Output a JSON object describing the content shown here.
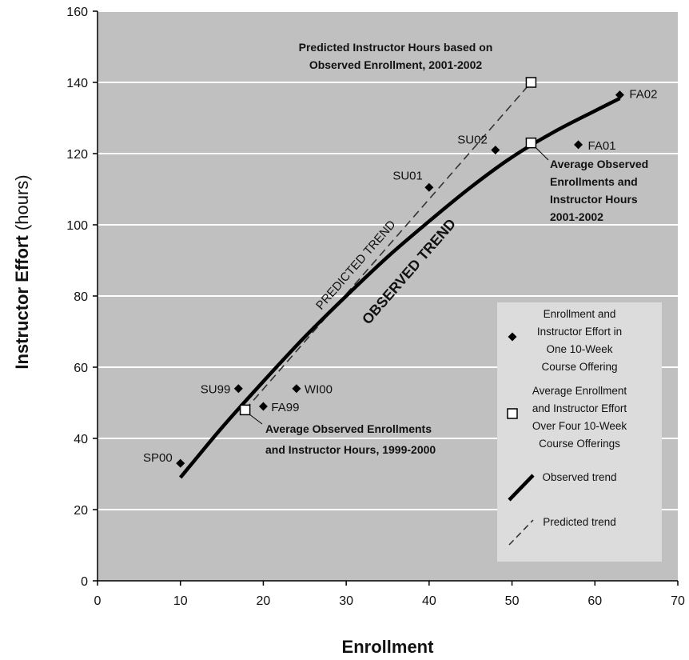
{
  "chart_data": {
    "type": "scatter",
    "xlabel": "Enrollment",
    "ylabel_bold": "Instructor Effort",
    "ylabel_unit": "(hours)",
    "xlim": [
      0,
      70
    ],
    "ylim": [
      0,
      160
    ],
    "xticks": [
      0,
      10,
      20,
      30,
      40,
      50,
      60,
      70
    ],
    "yticks": [
      0,
      20,
      40,
      60,
      80,
      100,
      120,
      140,
      160
    ],
    "grid": "horizontal",
    "colors": {
      "plot_bg": "#c0c0c0",
      "legend_bg": "#dcdcdc",
      "grid": "#ffffff",
      "marks": "#000000"
    },
    "offerings": [
      {
        "label": "SP00",
        "x": 10,
        "y": 33
      },
      {
        "label": "SU99",
        "x": 17,
        "y": 54
      },
      {
        "label": "FA99",
        "x": 20,
        "y": 49
      },
      {
        "label": "WI00",
        "x": 24,
        "y": 54
      },
      {
        "label": "SU01",
        "x": 40,
        "y": 110.5
      },
      {
        "label": "SU02",
        "x": 48,
        "y": 121
      },
      {
        "label": "FA01",
        "x": 58,
        "y": 122.5
      },
      {
        "label": "FA02",
        "x": 63,
        "y": 136.5
      }
    ],
    "averages": [
      {
        "x": 17.8,
        "y": 48
      },
      {
        "x": 52.3,
        "y": 123
      },
      {
        "x": 52.3,
        "y": 140
      }
    ],
    "observed_trend": {
      "label": "OBSERVED TREND",
      "x": [
        10,
        15,
        20,
        25,
        30,
        35,
        40,
        45,
        50,
        55,
        60,
        63
      ],
      "y": [
        29,
        43,
        56,
        68.5,
        80,
        91,
        101,
        110.5,
        119,
        126,
        132,
        135.5
      ]
    },
    "predicted_trend": {
      "label": "PREDICTED TREND",
      "x": [
        17.8,
        52.3
      ],
      "y": [
        48,
        140
      ]
    },
    "annotations": [
      {
        "lines": [
          "Predicted Instructor Hours based on",
          "Observed Enrollment, 2001-2002"
        ]
      },
      {
        "lines": [
          "Average Observed",
          "Enrollments and",
          "Instructor Hours",
          "2001-2002"
        ]
      },
      {
        "lines": [
          "Average Observed Enrollments",
          "and Instructor Hours, 1999-2000"
        ]
      }
    ],
    "legend": {
      "position": "bottom-right",
      "entries": [
        {
          "symbol": "diamond",
          "lines": [
            "Enrollment and",
            "Instructor Effort in",
            "One 10-Week",
            "Course Offering"
          ]
        },
        {
          "symbol": "square",
          "lines": [
            "Average Enrollment",
            "and Instructor Effort",
            "Over Four 10-Week",
            "Course Offerings"
          ]
        },
        {
          "symbol": "thick-line",
          "lines": [
            "Observed trend"
          ]
        },
        {
          "symbol": "dashed-line",
          "lines": [
            "Predicted trend"
          ]
        }
      ]
    }
  }
}
